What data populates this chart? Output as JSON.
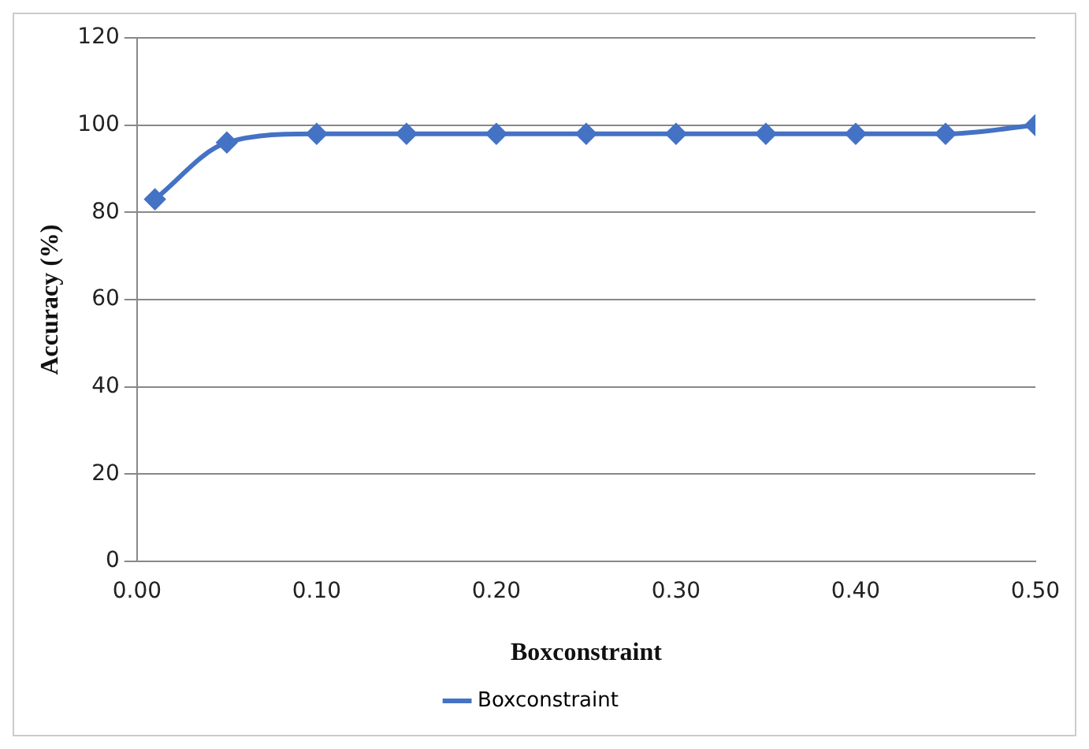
{
  "chart_data": {
    "type": "line",
    "xlabel": "Boxconstraint",
    "ylabel": "Accuracy (%)",
    "x": [
      0.01,
      0.05,
      0.1,
      0.15,
      0.2,
      0.25,
      0.3,
      0.35,
      0.4,
      0.45,
      0.5
    ],
    "series": [
      {
        "name": "Boxconstraint",
        "color": "#4472c4",
        "values": [
          83,
          96,
          98,
          98,
          98,
          98,
          98,
          98,
          98,
          98,
          100
        ]
      }
    ],
    "xlim": [
      0,
      0.5
    ],
    "xticks": [
      {
        "value": 0,
        "label": "0.00"
      },
      {
        "value": 0.1,
        "label": "0.10"
      },
      {
        "value": 0.2,
        "label": "0.20"
      },
      {
        "value": 0.3,
        "label": "0.30"
      },
      {
        "value": 0.4,
        "label": "0.40"
      },
      {
        "value": 0.5,
        "label": "0.50"
      }
    ],
    "ylim": [
      0,
      120
    ],
    "yticks": [
      0,
      20,
      40,
      60,
      80,
      100,
      120
    ],
    "grid": "y",
    "legend": "bottom",
    "marker": "diamond",
    "line_style": "solid"
  }
}
